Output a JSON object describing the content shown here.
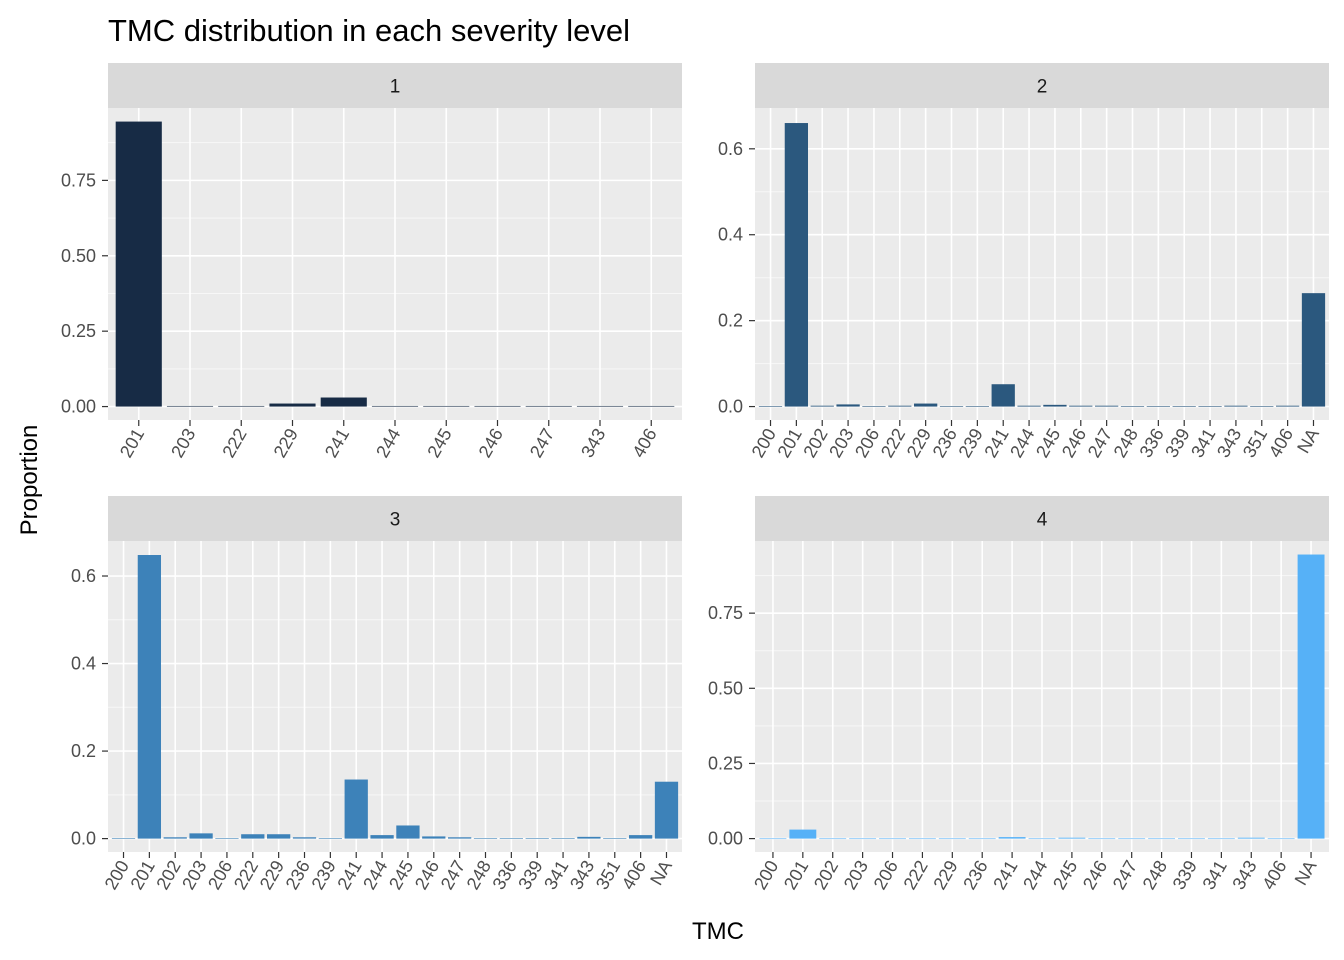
{
  "chart_data": {
    "type": "bar",
    "title": "TMC distribution in each severity level",
    "xlabel": "TMC",
    "ylabel": "Proportion",
    "grid": true,
    "legend": "none",
    "panels": [
      {
        "facet": "1",
        "color": "#172b45",
        "ylim": [
          0,
          0.99
        ],
        "yticks": [
          0.0,
          0.25,
          0.5,
          0.75
        ],
        "ytick_labels": [
          "0.00",
          "0.25",
          "0.50",
          "0.75"
        ],
        "categories": [
          "201",
          "203",
          "222",
          "229",
          "241",
          "244",
          "245",
          "246",
          "247",
          "343",
          "406"
        ],
        "values": [
          0.945,
          0.002,
          0.002,
          0.01,
          0.03,
          0.002,
          0.002,
          0.002,
          0.002,
          0.002,
          0.002
        ]
      },
      {
        "facet": "2",
        "color": "#2b587e",
        "ylim": [
          0,
          0.695
        ],
        "yticks": [
          0.0,
          0.2,
          0.4,
          0.6
        ],
        "ytick_labels": [
          "0.0",
          "0.2",
          "0.4",
          "0.6"
        ],
        "categories": [
          "200",
          "201",
          "202",
          "203",
          "206",
          "222",
          "229",
          "236",
          "239",
          "241",
          "244",
          "245",
          "246",
          "247",
          "248",
          "336",
          "339",
          "341",
          "343",
          "351",
          "406",
          "NA"
        ],
        "values": [
          0.0005,
          0.66,
          0.002,
          0.005,
          0.0005,
          0.002,
          0.007,
          0.0005,
          0.0005,
          0.052,
          0.002,
          0.004,
          0.002,
          0.002,
          0.0005,
          0.0005,
          0.0005,
          0.0005,
          0.002,
          0.0005,
          0.002,
          0.264
        ]
      },
      {
        "facet": "3",
        "color": "#3d82b9",
        "ylim": [
          0,
          0.68
        ],
        "yticks": [
          0.0,
          0.2,
          0.4,
          0.6
        ],
        "ytick_labels": [
          "0.0",
          "0.2",
          "0.4",
          "0.6"
        ],
        "categories": [
          "200",
          "201",
          "202",
          "203",
          "206",
          "222",
          "229",
          "236",
          "239",
          "241",
          "244",
          "245",
          "246",
          "247",
          "248",
          "336",
          "339",
          "341",
          "343",
          "351",
          "406",
          "NA"
        ],
        "values": [
          0.0005,
          0.648,
          0.003,
          0.012,
          0.0005,
          0.01,
          0.01,
          0.003,
          0.0005,
          0.135,
          0.008,
          0.03,
          0.005,
          0.003,
          0.0005,
          0.0005,
          0.0005,
          0.0005,
          0.004,
          0.0005,
          0.008,
          0.13
        ]
      },
      {
        "facet": "4",
        "color": "#56b1f7",
        "ylim": [
          0,
          0.99
        ],
        "yticks": [
          0.0,
          0.25,
          0.5,
          0.75
        ],
        "ytick_labels": [
          "0.00",
          "0.25",
          "0.50",
          "0.75"
        ],
        "categories": [
          "200",
          "201",
          "202",
          "203",
          "206",
          "222",
          "229",
          "236",
          "241",
          "244",
          "245",
          "246",
          "247",
          "248",
          "339",
          "341",
          "343",
          "406",
          "NA"
        ],
        "values": [
          0.0005,
          0.03,
          0.0005,
          0.0005,
          0.0005,
          0.0005,
          0.0005,
          0.0005,
          0.005,
          0.0005,
          0.003,
          0.0005,
          0.0005,
          0.0005,
          0.0005,
          0.0005,
          0.003,
          0.0005,
          0.945
        ]
      }
    ]
  }
}
